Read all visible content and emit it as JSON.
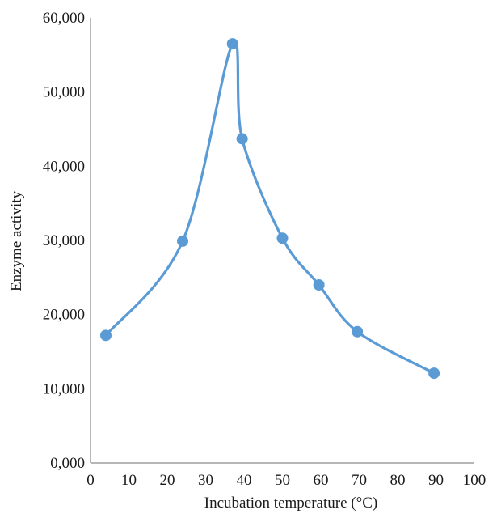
{
  "chart_data": {
    "type": "scatter",
    "title": "",
    "xlabel": "Incubation temperature (°C)",
    "ylabel": "Enzyme activity",
    "xlim": [
      0,
      100
    ],
    "ylim": [
      0,
      60000
    ],
    "grid": false,
    "legend": "none",
    "smooth_line": true,
    "x_ticks": [
      "0",
      "10",
      "20",
      "30",
      "40",
      "50",
      "60",
      "70",
      "80",
      "90",
      "100"
    ],
    "y_ticks": [
      "0,000",
      "10,000",
      "20,000",
      "30,000",
      "40,000",
      "50,000",
      "60,000"
    ],
    "series": [
      {
        "color": "#5b9bd5",
        "points": [
          {
            "x": 4,
            "y": 17200
          },
          {
            "x": 24,
            "y": 29900
          },
          {
            "x": 37,
            "y": 56500
          },
          {
            "x": 39.5,
            "y": 43700
          },
          {
            "x": 50,
            "y": 30300
          },
          {
            "x": 59.5,
            "y": 24000
          },
          {
            "x": 69.5,
            "y": 17700
          },
          {
            "x": 89.5,
            "y": 12100
          }
        ]
      }
    ]
  }
}
